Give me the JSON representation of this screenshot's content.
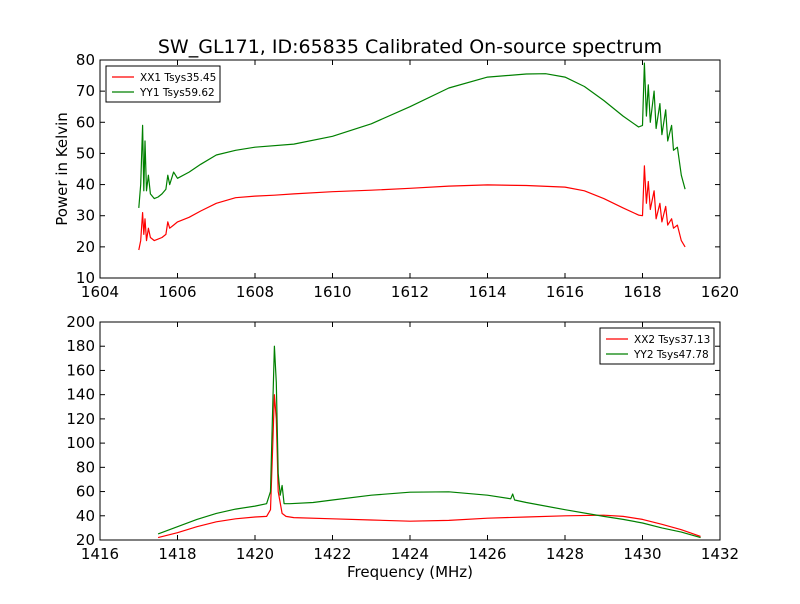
{
  "figure": {
    "title": "SW_GL171, ID:65835 Calibrated On-source spectrum",
    "ylabel": "Power in Kelvin",
    "xlabel": "Frequency (MHz)"
  },
  "chart_data": [
    {
      "type": "line",
      "xlim": [
        1604,
        1620
      ],
      "ylim": [
        10,
        80
      ],
      "xticks": [
        "1604",
        "1606",
        "1608",
        "1610",
        "1612",
        "1614",
        "1616",
        "1618",
        "1620"
      ],
      "yticks": [
        "10",
        "20",
        "30",
        "40",
        "50",
        "60",
        "70",
        "80"
      ],
      "legend_position": "top-left",
      "grid": false,
      "series": [
        {
          "name": "XX1 Tsys35.45",
          "color": "#ff0000",
          "points": [
            [
              1605.0,
              19
            ],
            [
              1605.05,
              22
            ],
            [
              1605.1,
              31
            ],
            [
              1605.13,
              24
            ],
            [
              1605.16,
              29
            ],
            [
              1605.2,
              22
            ],
            [
              1605.25,
              26
            ],
            [
              1605.3,
              23
            ],
            [
              1605.4,
              22
            ],
            [
              1605.5,
              22.5
            ],
            [
              1605.6,
              23
            ],
            [
              1605.7,
              24
            ],
            [
              1605.75,
              28
            ],
            [
              1605.8,
              26
            ],
            [
              1605.9,
              27
            ],
            [
              1606.0,
              28
            ],
            [
              1606.3,
              29.5
            ],
            [
              1606.6,
              31.5
            ],
            [
              1607.0,
              34
            ],
            [
              1607.5,
              35.8
            ],
            [
              1608.0,
              36.3
            ],
            [
              1608.5,
              36.6
            ],
            [
              1609.0,
              37
            ],
            [
              1610.0,
              37.7
            ],
            [
              1611.0,
              38.2
            ],
            [
              1612.0,
              38.8
            ],
            [
              1613.0,
              39.5
            ],
            [
              1614.0,
              39.9
            ],
            [
              1615.0,
              39.7
            ],
            [
              1616.0,
              39.2
            ],
            [
              1616.5,
              38
            ],
            [
              1617.0,
              35.5
            ],
            [
              1617.5,
              32.5
            ],
            [
              1617.9,
              30.2
            ],
            [
              1618.0,
              30
            ],
            [
              1618.05,
              46
            ],
            [
              1618.1,
              34
            ],
            [
              1618.15,
              41
            ],
            [
              1618.2,
              32
            ],
            [
              1618.3,
              38
            ],
            [
              1618.35,
              29
            ],
            [
              1618.45,
              34
            ],
            [
              1618.5,
              28
            ],
            [
              1618.6,
              33
            ],
            [
              1618.65,
              27
            ],
            [
              1618.75,
              29
            ],
            [
              1618.8,
              26
            ],
            [
              1618.9,
              27
            ],
            [
              1619.0,
              22
            ],
            [
              1619.1,
              20
            ]
          ]
        },
        {
          "name": "YY1 Tsys59.62",
          "color": "#008000",
          "points": [
            [
              1605.0,
              32.5
            ],
            [
              1605.05,
              40
            ],
            [
              1605.1,
              59
            ],
            [
              1605.13,
              38
            ],
            [
              1605.16,
              54
            ],
            [
              1605.2,
              38
            ],
            [
              1605.25,
              43
            ],
            [
              1605.3,
              37
            ],
            [
              1605.4,
              35.5
            ],
            [
              1605.5,
              36
            ],
            [
              1605.6,
              37
            ],
            [
              1605.7,
              38.5
            ],
            [
              1605.75,
              43
            ],
            [
              1605.8,
              40
            ],
            [
              1605.9,
              44
            ],
            [
              1606.0,
              42
            ],
            [
              1606.3,
              44
            ],
            [
              1606.6,
              46.5
            ],
            [
              1607.0,
              49.5
            ],
            [
              1607.5,
              51
            ],
            [
              1608.0,
              52
            ],
            [
              1609.0,
              53
            ],
            [
              1610.0,
              55.5
            ],
            [
              1611.0,
              59.5
            ],
            [
              1612.0,
              65
            ],
            [
              1613.0,
              71
            ],
            [
              1614.0,
              74.5
            ],
            [
              1615.0,
              75.5
            ],
            [
              1615.5,
              75.6
            ],
            [
              1616.0,
              74.5
            ],
            [
              1616.5,
              71.5
            ],
            [
              1617.0,
              67
            ],
            [
              1617.5,
              62
            ],
            [
              1617.9,
              58.5
            ],
            [
              1618.0,
              59
            ],
            [
              1618.05,
              79
            ],
            [
              1618.1,
              62
            ],
            [
              1618.15,
              72
            ],
            [
              1618.2,
              60
            ],
            [
              1618.3,
              70
            ],
            [
              1618.35,
              58
            ],
            [
              1618.45,
              66
            ],
            [
              1618.5,
              56
            ],
            [
              1618.6,
              64
            ],
            [
              1618.65,
              54
            ],
            [
              1618.75,
              59
            ],
            [
              1618.8,
              51
            ],
            [
              1618.9,
              52
            ],
            [
              1619.0,
              43
            ],
            [
              1619.1,
              38.5
            ]
          ]
        }
      ]
    },
    {
      "type": "line",
      "xlim": [
        1416,
        1432
      ],
      "ylim": [
        20,
        200
      ],
      "xticks": [
        "1416",
        "1418",
        "1420",
        "1422",
        "1424",
        "1426",
        "1428",
        "1430",
        "1432"
      ],
      "yticks": [
        "20",
        "40",
        "60",
        "80",
        "100",
        "120",
        "140",
        "160",
        "180",
        "200"
      ],
      "legend_position": "top-right",
      "grid": false,
      "series": [
        {
          "name": "XX2 Tsys37.13",
          "color": "#ff0000",
          "points": [
            [
              1417.5,
              22
            ],
            [
              1418.0,
              26
            ],
            [
              1418.5,
              31
            ],
            [
              1419.0,
              35
            ],
            [
              1419.5,
              37.5
            ],
            [
              1420.0,
              39
            ],
            [
              1420.3,
              39.5
            ],
            [
              1420.4,
              45
            ],
            [
              1420.45,
              90
            ],
            [
              1420.5,
              140
            ],
            [
              1420.55,
              120
            ],
            [
              1420.6,
              60
            ],
            [
              1420.7,
              42
            ],
            [
              1420.8,
              39.5
            ],
            [
              1421.0,
              38.5
            ],
            [
              1422.0,
              37.5
            ],
            [
              1423.0,
              36.5
            ],
            [
              1424.0,
              35.5
            ],
            [
              1425.0,
              36.2
            ],
            [
              1426.0,
              38
            ],
            [
              1427.0,
              39
            ],
            [
              1428.0,
              40
            ],
            [
              1429.0,
              40.5
            ],
            [
              1429.5,
              39.5
            ],
            [
              1430.0,
              37
            ],
            [
              1430.5,
              33
            ],
            [
              1431.0,
              28.5
            ],
            [
              1431.5,
              23
            ]
          ]
        },
        {
          "name": "YY2 Tsys47.78",
          "color": "#008000",
          "points": [
            [
              1417.5,
              25
            ],
            [
              1418.0,
              31
            ],
            [
              1418.5,
              37
            ],
            [
              1419.0,
              42
            ],
            [
              1419.5,
              45.5
            ],
            [
              1420.0,
              48
            ],
            [
              1420.3,
              50
            ],
            [
              1420.4,
              60
            ],
            [
              1420.45,
              120
            ],
            [
              1420.5,
              180
            ],
            [
              1420.55,
              150
            ],
            [
              1420.6,
              75
            ],
            [
              1420.65,
              57
            ],
            [
              1420.7,
              65
            ],
            [
              1420.75,
              50
            ],
            [
              1420.9,
              50
            ],
            [
              1421.5,
              51
            ],
            [
              1422.0,
              53
            ],
            [
              1423.0,
              57
            ],
            [
              1424.0,
              59.5
            ],
            [
              1425.0,
              59.8
            ],
            [
              1426.0,
              57
            ],
            [
              1426.6,
              54
            ],
            [
              1426.65,
              58
            ],
            [
              1426.7,
              53
            ],
            [
              1427.0,
              51
            ],
            [
              1428.0,
              45
            ],
            [
              1429.0,
              39.5
            ],
            [
              1429.5,
              37
            ],
            [
              1430.0,
              34
            ],
            [
              1430.5,
              30
            ],
            [
              1431.0,
              26.5
            ],
            [
              1431.5,
              22
            ]
          ]
        }
      ]
    }
  ]
}
